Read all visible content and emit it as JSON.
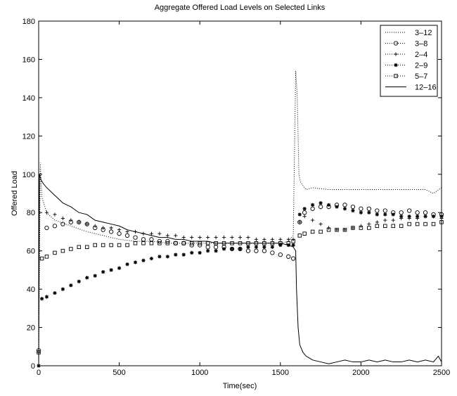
{
  "chart_data": {
    "type": "line",
    "title": "Aggregate Offered Load Levels on Selected Links",
    "xlabel": "Time(sec)",
    "ylabel": "Offered Load",
    "xlim": [
      0,
      2500
    ],
    "ylim": [
      0,
      180
    ],
    "xticks": [
      0,
      500,
      1000,
      1500,
      2000,
      2500
    ],
    "yticks": [
      0,
      20,
      40,
      60,
      80,
      100,
      120,
      140,
      160,
      180
    ],
    "grid": false,
    "legend_position": "top-right",
    "series": [
      {
        "name": "3–12",
        "marker": "dotted-line",
        "x": [
          0,
          10,
          20,
          50,
          100,
          200,
          300,
          400,
          500,
          600,
          700,
          800,
          900,
          1000,
          1100,
          1200,
          1300,
          1400,
          1500,
          1550,
          1580,
          1595,
          1605,
          1615,
          1625,
          1640,
          1660,
          1700,
          1800,
          1900,
          2000,
          2100,
          2200,
          2300,
          2400,
          2450,
          2500
        ],
        "y": [
          0,
          106,
          88,
          80,
          76,
          73,
          70,
          68,
          66,
          65,
          65,
          64,
          64,
          64,
          64,
          64,
          64,
          64,
          64,
          65,
          68,
          154,
          140,
          100,
          96,
          94,
          92,
          93,
          92,
          92,
          92,
          92,
          92,
          92,
          92,
          90,
          93
        ]
      },
      {
        "name": "3–8",
        "marker": "circle",
        "x": [
          0,
          50,
          100,
          150,
          200,
          250,
          300,
          350,
          400,
          450,
          500,
          550,
          600,
          650,
          700,
          750,
          800,
          850,
          900,
          950,
          1000,
          1050,
          1100,
          1150,
          1200,
          1250,
          1300,
          1350,
          1400,
          1450,
          1500,
          1550,
          1580,
          1620,
          1650,
          1700,
          1750,
          1800,
          1850,
          1900,
          1950,
          2000,
          2050,
          2100,
          2150,
          2200,
          2250,
          2300,
          2350,
          2400,
          2450,
          2500
        ],
        "y": [
          8,
          72,
          73,
          74,
          75,
          75,
          74,
          72,
          71,
          70,
          69,
          68,
          67,
          66,
          66,
          65,
          65,
          64,
          64,
          63,
          63,
          62,
          62,
          62,
          61,
          61,
          60,
          60,
          60,
          59,
          58,
          57,
          56,
          75,
          80,
          82,
          83,
          83,
          84,
          84,
          83,
          82,
          82,
          81,
          81,
          80,
          80,
          81,
          80,
          80,
          79,
          79
        ]
      },
      {
        "name": "2–4",
        "marker": "plus",
        "x": [
          0,
          50,
          100,
          150,
          200,
          250,
          300,
          350,
          400,
          450,
          500,
          550,
          600,
          650,
          700,
          750,
          800,
          850,
          900,
          950,
          1000,
          1050,
          1100,
          1150,
          1200,
          1250,
          1300,
          1350,
          1400,
          1450,
          1500,
          1550,
          1580,
          1620,
          1650,
          1700,
          1750,
          1800,
          1850,
          1900,
          1950,
          2000,
          2050,
          2100,
          2150,
          2200,
          2250,
          2300,
          2350,
          2400,
          2450,
          2500
        ],
        "y": [
          7,
          80,
          79,
          77,
          76,
          75,
          74,
          73,
          72,
          72,
          71,
          70,
          70,
          69,
          69,
          69,
          68,
          68,
          67,
          67,
          67,
          67,
          67,
          67,
          67,
          67,
          67,
          66,
          66,
          66,
          66,
          66,
          66,
          75,
          78,
          76,
          74,
          72,
          71,
          71,
          72,
          73,
          74,
          75,
          76,
          76,
          77,
          77,
          77,
          78,
          78,
          77
        ]
      },
      {
        "name": "2–9",
        "marker": "asterisk",
        "x": [
          0,
          20,
          50,
          100,
          150,
          200,
          250,
          300,
          350,
          400,
          450,
          500,
          550,
          600,
          650,
          700,
          750,
          800,
          850,
          900,
          950,
          1000,
          1050,
          1100,
          1150,
          1200,
          1250,
          1300,
          1350,
          1400,
          1450,
          1500,
          1550,
          1580,
          1620,
          1650,
          1700,
          1750,
          1800,
          1850,
          1900,
          1950,
          2000,
          2050,
          2100,
          2150,
          2200,
          2250,
          2300,
          2350,
          2400,
          2450,
          2500
        ],
        "y": [
          0,
          35,
          36,
          38,
          40,
          42,
          44,
          46,
          47,
          49,
          50,
          51,
          53,
          54,
          55,
          56,
          57,
          57,
          58,
          58,
          59,
          59,
          60,
          60,
          61,
          61,
          61,
          62,
          62,
          62,
          62,
          63,
          63,
          63,
          79,
          82,
          84,
          85,
          84,
          83,
          82,
          81,
          80,
          80,
          79,
          79,
          79,
          78,
          78,
          78,
          78,
          78,
          78
        ]
      },
      {
        "name": "5–7",
        "marker": "square",
        "x": [
          0,
          20,
          50,
          100,
          150,
          200,
          250,
          300,
          350,
          400,
          450,
          500,
          550,
          600,
          650,
          700,
          750,
          800,
          850,
          900,
          950,
          1000,
          1050,
          1100,
          1150,
          1200,
          1250,
          1300,
          1350,
          1400,
          1450,
          1500,
          1550,
          1580,
          1620,
          1650,
          1700,
          1750,
          1800,
          1850,
          1900,
          1950,
          2000,
          2050,
          2100,
          2150,
          2200,
          2250,
          2300,
          2350,
          2400,
          2450,
          2500
        ],
        "y": [
          7,
          56,
          57,
          59,
          60,
          61,
          62,
          62,
          63,
          63,
          63,
          63,
          63,
          64,
          64,
          64,
          64,
          64,
          64,
          64,
          64,
          64,
          64,
          64,
          64,
          64,
          64,
          64,
          64,
          64,
          64,
          64,
          64,
          65,
          68,
          69,
          70,
          70,
          71,
          71,
          71,
          72,
          72,
          72,
          73,
          73,
          73,
          73,
          74,
          74,
          74,
          74,
          75
        ]
      },
      {
        "name": "12–16",
        "marker": "solid-line",
        "x": [
          0,
          5,
          15,
          30,
          50,
          75,
          100,
          125,
          150,
          175,
          200,
          250,
          300,
          350,
          400,
          450,
          500,
          550,
          600,
          650,
          700,
          750,
          800,
          850,
          900,
          950,
          1000,
          1050,
          1100,
          1150,
          1200,
          1250,
          1300,
          1350,
          1400,
          1450,
          1500,
          1550,
          1580,
          1595,
          1600,
          1610,
          1620,
          1640,
          1660,
          1680,
          1700,
          1750,
          1800,
          1850,
          1900,
          1950,
          2000,
          2050,
          2100,
          2150,
          2200,
          2250,
          2300,
          2350,
          2400,
          2450,
          2480,
          2500
        ],
        "y": [
          0,
          100,
          97,
          95,
          93,
          91,
          89,
          87,
          85,
          84,
          83,
          80,
          79,
          76,
          75,
          74,
          73,
          71,
          70,
          69,
          68,
          67,
          67,
          66,
          66,
          65,
          65,
          65,
          64,
          64,
          64,
          64,
          64,
          64,
          64,
          64,
          64,
          63,
          62,
          60,
          40,
          20,
          11,
          7,
          5,
          4,
          3,
          2,
          1,
          2,
          3,
          2,
          2,
          3,
          2,
          3,
          2,
          2,
          3,
          2,
          3,
          2,
          5,
          2
        ]
      }
    ]
  }
}
